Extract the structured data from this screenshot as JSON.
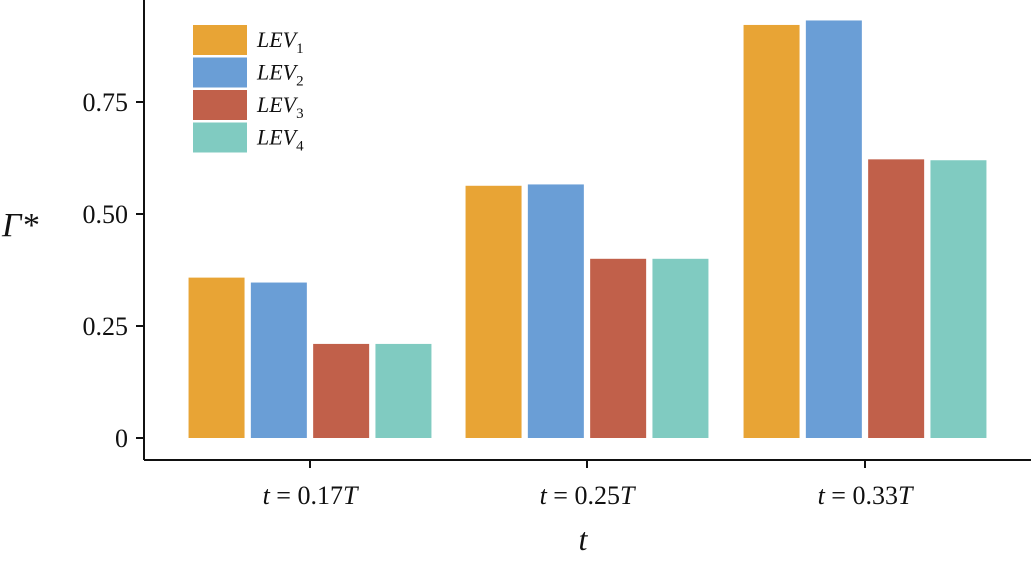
{
  "chart_data": {
    "type": "bar",
    "categories": [
      {
        "pre": "t",
        "mid": " = 0.17",
        "post": "T"
      },
      {
        "pre": "t",
        "mid": " = 0.25",
        "post": "T"
      },
      {
        "pre": "t",
        "mid": " = 0.33",
        "post": "T"
      }
    ],
    "series": [
      {
        "name": "LEV",
        "sub": "1",
        "color": "#E8A435",
        "values": [
          0.358,
          0.563,
          0.922
        ]
      },
      {
        "name": "LEV",
        "sub": "2",
        "color": "#6A9ED6",
        "values": [
          0.347,
          0.566,
          0.932
        ]
      },
      {
        "name": "LEV",
        "sub": "3",
        "color": "#C1604A",
        "values": [
          0.21,
          0.4,
          0.622
        ]
      },
      {
        "name": "LEV",
        "sub": "4",
        "color": "#80CBC1",
        "values": [
          0.21,
          0.4,
          0.62
        ]
      }
    ],
    "xlabel": "t",
    "ylabel": "Γ*",
    "ylim": [
      0,
      0.95
    ],
    "yticks": [
      "0",
      "0.25",
      "0.50",
      "0.75"
    ],
    "ytick_values": [
      0,
      0.25,
      0.5,
      0.75
    ],
    "legend_position": "top-left",
    "grid": false
  }
}
